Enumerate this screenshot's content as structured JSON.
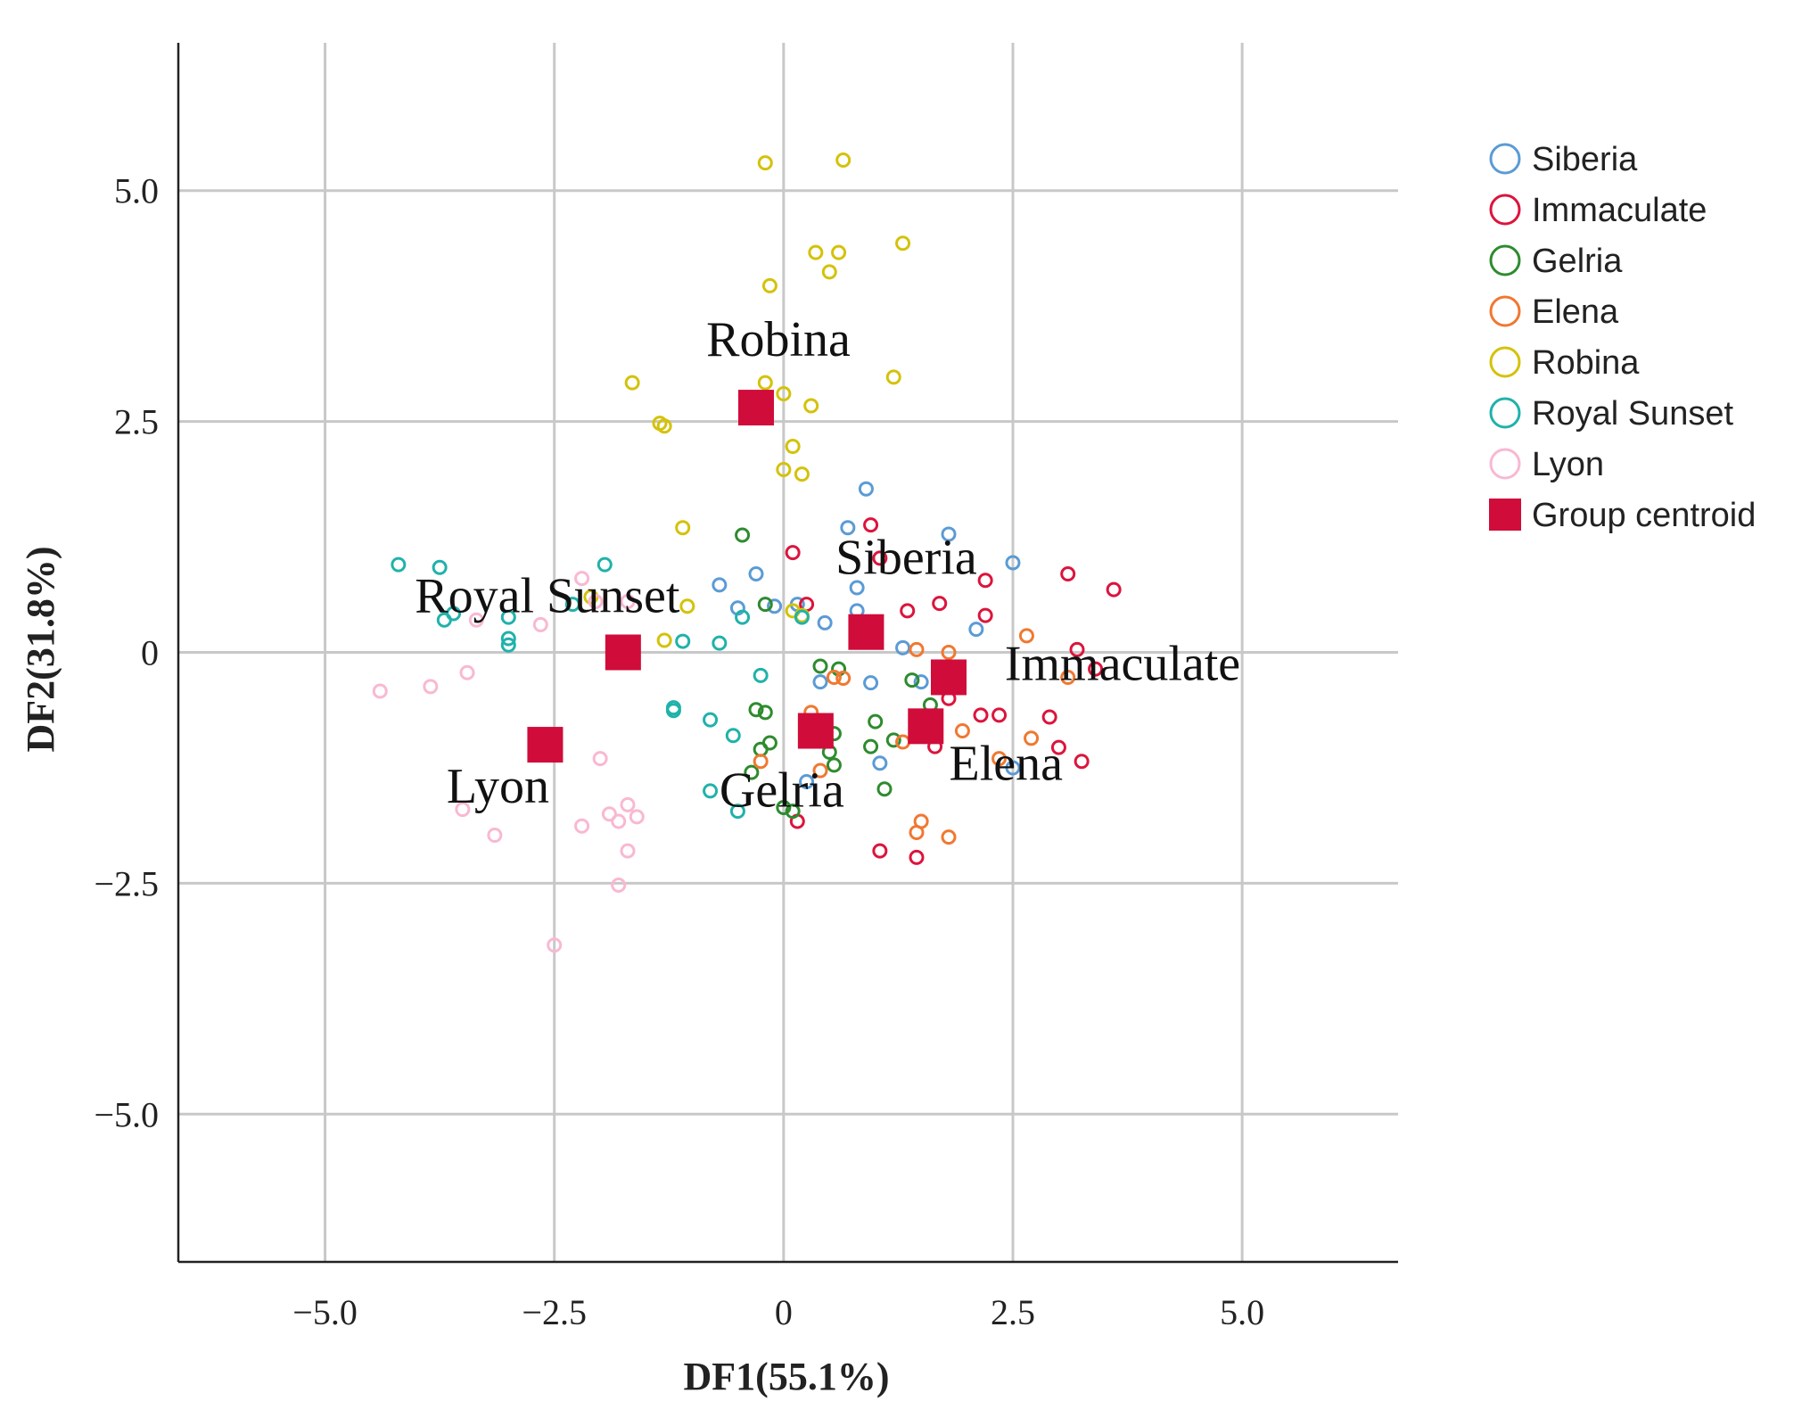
{
  "chart_data": {
    "type": "scatter",
    "title": "",
    "xlabel": "DF1(55.1%)",
    "ylabel": "DF2(31.8%)",
    "xlim": [
      -6.6,
      6.7
    ],
    "ylim": [
      -6.6,
      6.6
    ],
    "xticks": [
      -5.0,
      -2.5,
      0,
      2.5,
      5.0
    ],
    "yticks": [
      5.0,
      2.5,
      0,
      -2.5,
      -5.0
    ],
    "xtick_labels": [
      "−5.0",
      "−2.5",
      "0",
      "2.5",
      "5.0"
    ],
    "ytick_labels": [
      "5.0",
      "2.5",
      "0",
      "−2.5",
      "−5.0"
    ],
    "grid": true,
    "legend_position": "right",
    "series": [
      {
        "name": "Siberia",
        "color": "#5b9bd5",
        "points": [
          [
            0.9,
            1.77
          ],
          [
            0.7,
            1.35
          ],
          [
            1.8,
            1.28
          ],
          [
            2.5,
            0.97
          ],
          [
            -0.3,
            0.85
          ],
          [
            -0.7,
            0.73
          ],
          [
            0.8,
            0.7
          ],
          [
            -0.5,
            0.48
          ],
          [
            -0.1,
            0.5
          ],
          [
            0.15,
            0.52
          ],
          [
            0.8,
            0.45
          ],
          [
            0.45,
            0.32
          ],
          [
            1.3,
            0.05
          ],
          [
            2.1,
            0.25
          ],
          [
            0.95,
            -0.33
          ],
          [
            1.5,
            -0.32
          ],
          [
            0.4,
            -0.32
          ],
          [
            1.05,
            -1.2
          ],
          [
            2.5,
            -1.25
          ],
          [
            0.25,
            -1.4
          ]
        ]
      },
      {
        "name": "Immaculate",
        "color": "#dc143c",
        "points": [
          [
            0.95,
            1.38
          ],
          [
            0.1,
            1.08
          ],
          [
            1.05,
            1.02
          ],
          [
            2.2,
            0.78
          ],
          [
            3.1,
            0.85
          ],
          [
            3.6,
            0.68
          ],
          [
            1.7,
            0.53
          ],
          [
            0.25,
            0.52
          ],
          [
            1.35,
            0.45
          ],
          [
            2.2,
            0.4
          ],
          [
            3.2,
            0.03
          ],
          [
            3.4,
            -0.18
          ],
          [
            2.35,
            -0.68
          ],
          [
            2.15,
            -0.68
          ],
          [
            2.9,
            -0.7
          ],
          [
            1.8,
            -0.5
          ],
          [
            3.0,
            -1.03
          ],
          [
            3.25,
            -1.18
          ],
          [
            1.65,
            -1.02
          ],
          [
            1.05,
            -2.15
          ],
          [
            1.45,
            -2.22
          ],
          [
            0.15,
            -1.83
          ]
        ]
      },
      {
        "name": "Gelria",
        "color": "#2e8b2e",
        "points": [
          [
            -0.45,
            1.27
          ],
          [
            -0.2,
            0.52
          ],
          [
            0.4,
            -0.15
          ],
          [
            0.6,
            -0.18
          ],
          [
            1.4,
            -0.3
          ],
          [
            1.6,
            -0.57
          ],
          [
            -0.3,
            -0.62
          ],
          [
            -0.2,
            -0.65
          ],
          [
            1.0,
            -0.75
          ],
          [
            0.55,
            -0.88
          ],
          [
            -0.15,
            -0.98
          ],
          [
            -0.25,
            -1.05
          ],
          [
            0.5,
            -1.08
          ],
          [
            0.95,
            -1.02
          ],
          [
            1.2,
            -0.95
          ],
          [
            0.55,
            -1.22
          ],
          [
            -0.35,
            -1.3
          ],
          [
            1.1,
            -1.48
          ],
          [
            0.0,
            -1.68
          ],
          [
            0.1,
            -1.72
          ]
        ]
      },
      {
        "name": "Elena",
        "color": "#f07830",
        "points": [
          [
            2.65,
            0.18
          ],
          [
            1.45,
            0.03
          ],
          [
            1.8,
            0.0
          ],
          [
            0.55,
            -0.27
          ],
          [
            0.65,
            -0.28
          ],
          [
            3.1,
            -0.27
          ],
          [
            0.3,
            -0.65
          ],
          [
            1.95,
            -0.85
          ],
          [
            2.7,
            -0.93
          ],
          [
            0.4,
            -0.78
          ],
          [
            -0.25,
            -1.18
          ],
          [
            0.4,
            -1.28
          ],
          [
            2.35,
            -1.15
          ],
          [
            1.3,
            -0.97
          ],
          [
            1.5,
            -1.83
          ],
          [
            1.45,
            -1.95
          ],
          [
            1.8,
            -2.0
          ]
        ]
      },
      {
        "name": "Robina",
        "color": "#d4c20a",
        "points": [
          [
            -0.2,
            5.3
          ],
          [
            0.65,
            5.33
          ],
          [
            1.3,
            4.43
          ],
          [
            0.35,
            4.33
          ],
          [
            0.6,
            4.33
          ],
          [
            0.5,
            4.12
          ],
          [
            -0.15,
            3.97
          ],
          [
            1.2,
            2.98
          ],
          [
            -1.65,
            2.92
          ],
          [
            -0.2,
            2.92
          ],
          [
            0.0,
            2.8
          ],
          [
            0.3,
            2.67
          ],
          [
            -1.35,
            2.48
          ],
          [
            -1.3,
            2.45
          ],
          [
            0.1,
            2.23
          ],
          [
            0.0,
            1.98
          ],
          [
            0.2,
            1.93
          ],
          [
            -1.1,
            1.35
          ],
          [
            -1.05,
            0.5
          ],
          [
            -1.3,
            0.13
          ],
          [
            -2.1,
            0.6
          ],
          [
            0.1,
            0.45
          ],
          [
            0.2,
            0.4
          ]
        ]
      },
      {
        "name": "Royal Sunset",
        "color": "#20b2aa",
        "points": [
          [
            -4.2,
            0.95
          ],
          [
            -3.75,
            0.92
          ],
          [
            -1.95,
            0.95
          ],
          [
            -3.6,
            0.42
          ],
          [
            -3.7,
            0.35
          ],
          [
            -3.0,
            0.38
          ],
          [
            -2.3,
            0.52
          ],
          [
            -3.0,
            0.15
          ],
          [
            -3.0,
            0.08
          ],
          [
            -1.1,
            0.12
          ],
          [
            -0.7,
            0.1
          ],
          [
            -0.45,
            0.38
          ],
          [
            -1.2,
            -0.6
          ],
          [
            -1.2,
            -0.63
          ],
          [
            -0.8,
            -0.73
          ],
          [
            -0.55,
            -0.9
          ],
          [
            -0.8,
            -1.5
          ],
          [
            -0.5,
            -1.72
          ],
          [
            0.2,
            0.38
          ],
          [
            -0.25,
            -0.25
          ]
        ]
      },
      {
        "name": "Lyon",
        "color": "#f9b8d2",
        "points": [
          [
            -4.4,
            -0.42
          ],
          [
            -3.85,
            -0.37
          ],
          [
            -3.45,
            -0.22
          ],
          [
            -2.65,
            0.3
          ],
          [
            -3.35,
            0.35
          ],
          [
            -2.2,
            0.8
          ],
          [
            -2.05,
            0.55
          ],
          [
            -1.7,
            0.55
          ],
          [
            -2.0,
            -1.15
          ],
          [
            -3.5,
            -1.7
          ],
          [
            -3.15,
            -1.98
          ],
          [
            -2.2,
            -1.88
          ],
          [
            -1.9,
            -1.75
          ],
          [
            -1.7,
            -1.65
          ],
          [
            -1.8,
            -1.83
          ],
          [
            -1.6,
            -1.78
          ],
          [
            -1.7,
            -2.15
          ],
          [
            -1.8,
            -2.52
          ],
          [
            -2.5,
            -3.17
          ]
        ]
      }
    ],
    "centroids": {
      "name": "Group centroid",
      "color": "#d00c3a",
      "points": [
        {
          "label": "Robina",
          "x": -0.3,
          "y": 2.65
        },
        {
          "label": "Royal Sunset",
          "x": -1.75,
          "y": 0.0
        },
        {
          "label": "Siberia",
          "x": 0.9,
          "y": 0.22
        },
        {
          "label": "Immaculate",
          "x": 1.8,
          "y": -0.27
        },
        {
          "label": "Lyon",
          "x": -2.6,
          "y": -1.0
        },
        {
          "label": "Gelria",
          "x": 0.35,
          "y": -0.85
        },
        {
          "label": "Elena",
          "x": 1.55,
          "y": -0.8
        }
      ]
    },
    "legend": [
      "Siberia",
      "Immaculate",
      "Gelria",
      "Elena",
      "Robina",
      "Royal Sunset",
      "Lyon",
      "Group centroid"
    ]
  }
}
